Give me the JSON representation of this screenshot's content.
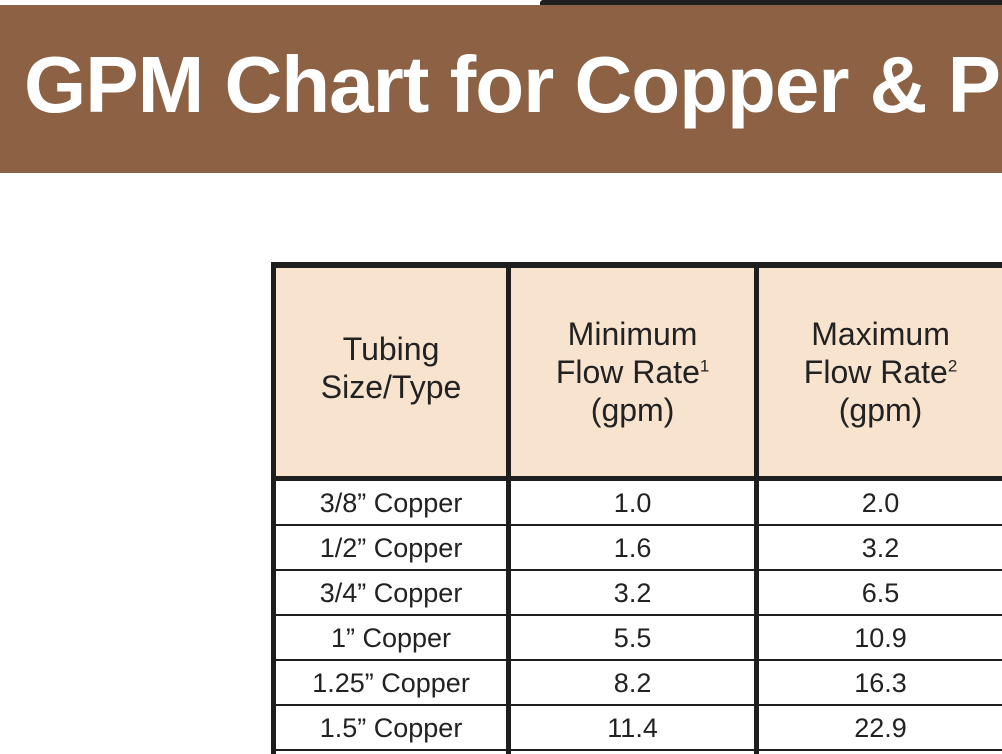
{
  "banner": {
    "title": "GPM Chart for Copper & P"
  },
  "table": {
    "headers": [
      {
        "lines": [
          "Tubing",
          "Size/Type"
        ],
        "sup": ""
      },
      {
        "lines": [
          "Minimum",
          "Flow Rate",
          "(gpm)"
        ],
        "sup": "1"
      },
      {
        "lines": [
          "Maximum",
          "Flow Rate",
          "(gpm)"
        ],
        "sup": "2"
      }
    ],
    "rows": [
      {
        "size": "3/8” Copper",
        "min": "1.0",
        "max": "2.0"
      },
      {
        "size": "1/2” Copper",
        "min": "1.6",
        "max": "3.2"
      },
      {
        "size": "3/4” Copper",
        "min": "3.2",
        "max": "6.5"
      },
      {
        "size": "1” Copper",
        "min": "5.5",
        "max": "10.9"
      },
      {
        "size": "1.25” Copper",
        "min": "8.2",
        "max": "16.3"
      },
      {
        "size": "1.5” Copper",
        "min": "11.4",
        "max": "22.9"
      }
    ]
  }
}
